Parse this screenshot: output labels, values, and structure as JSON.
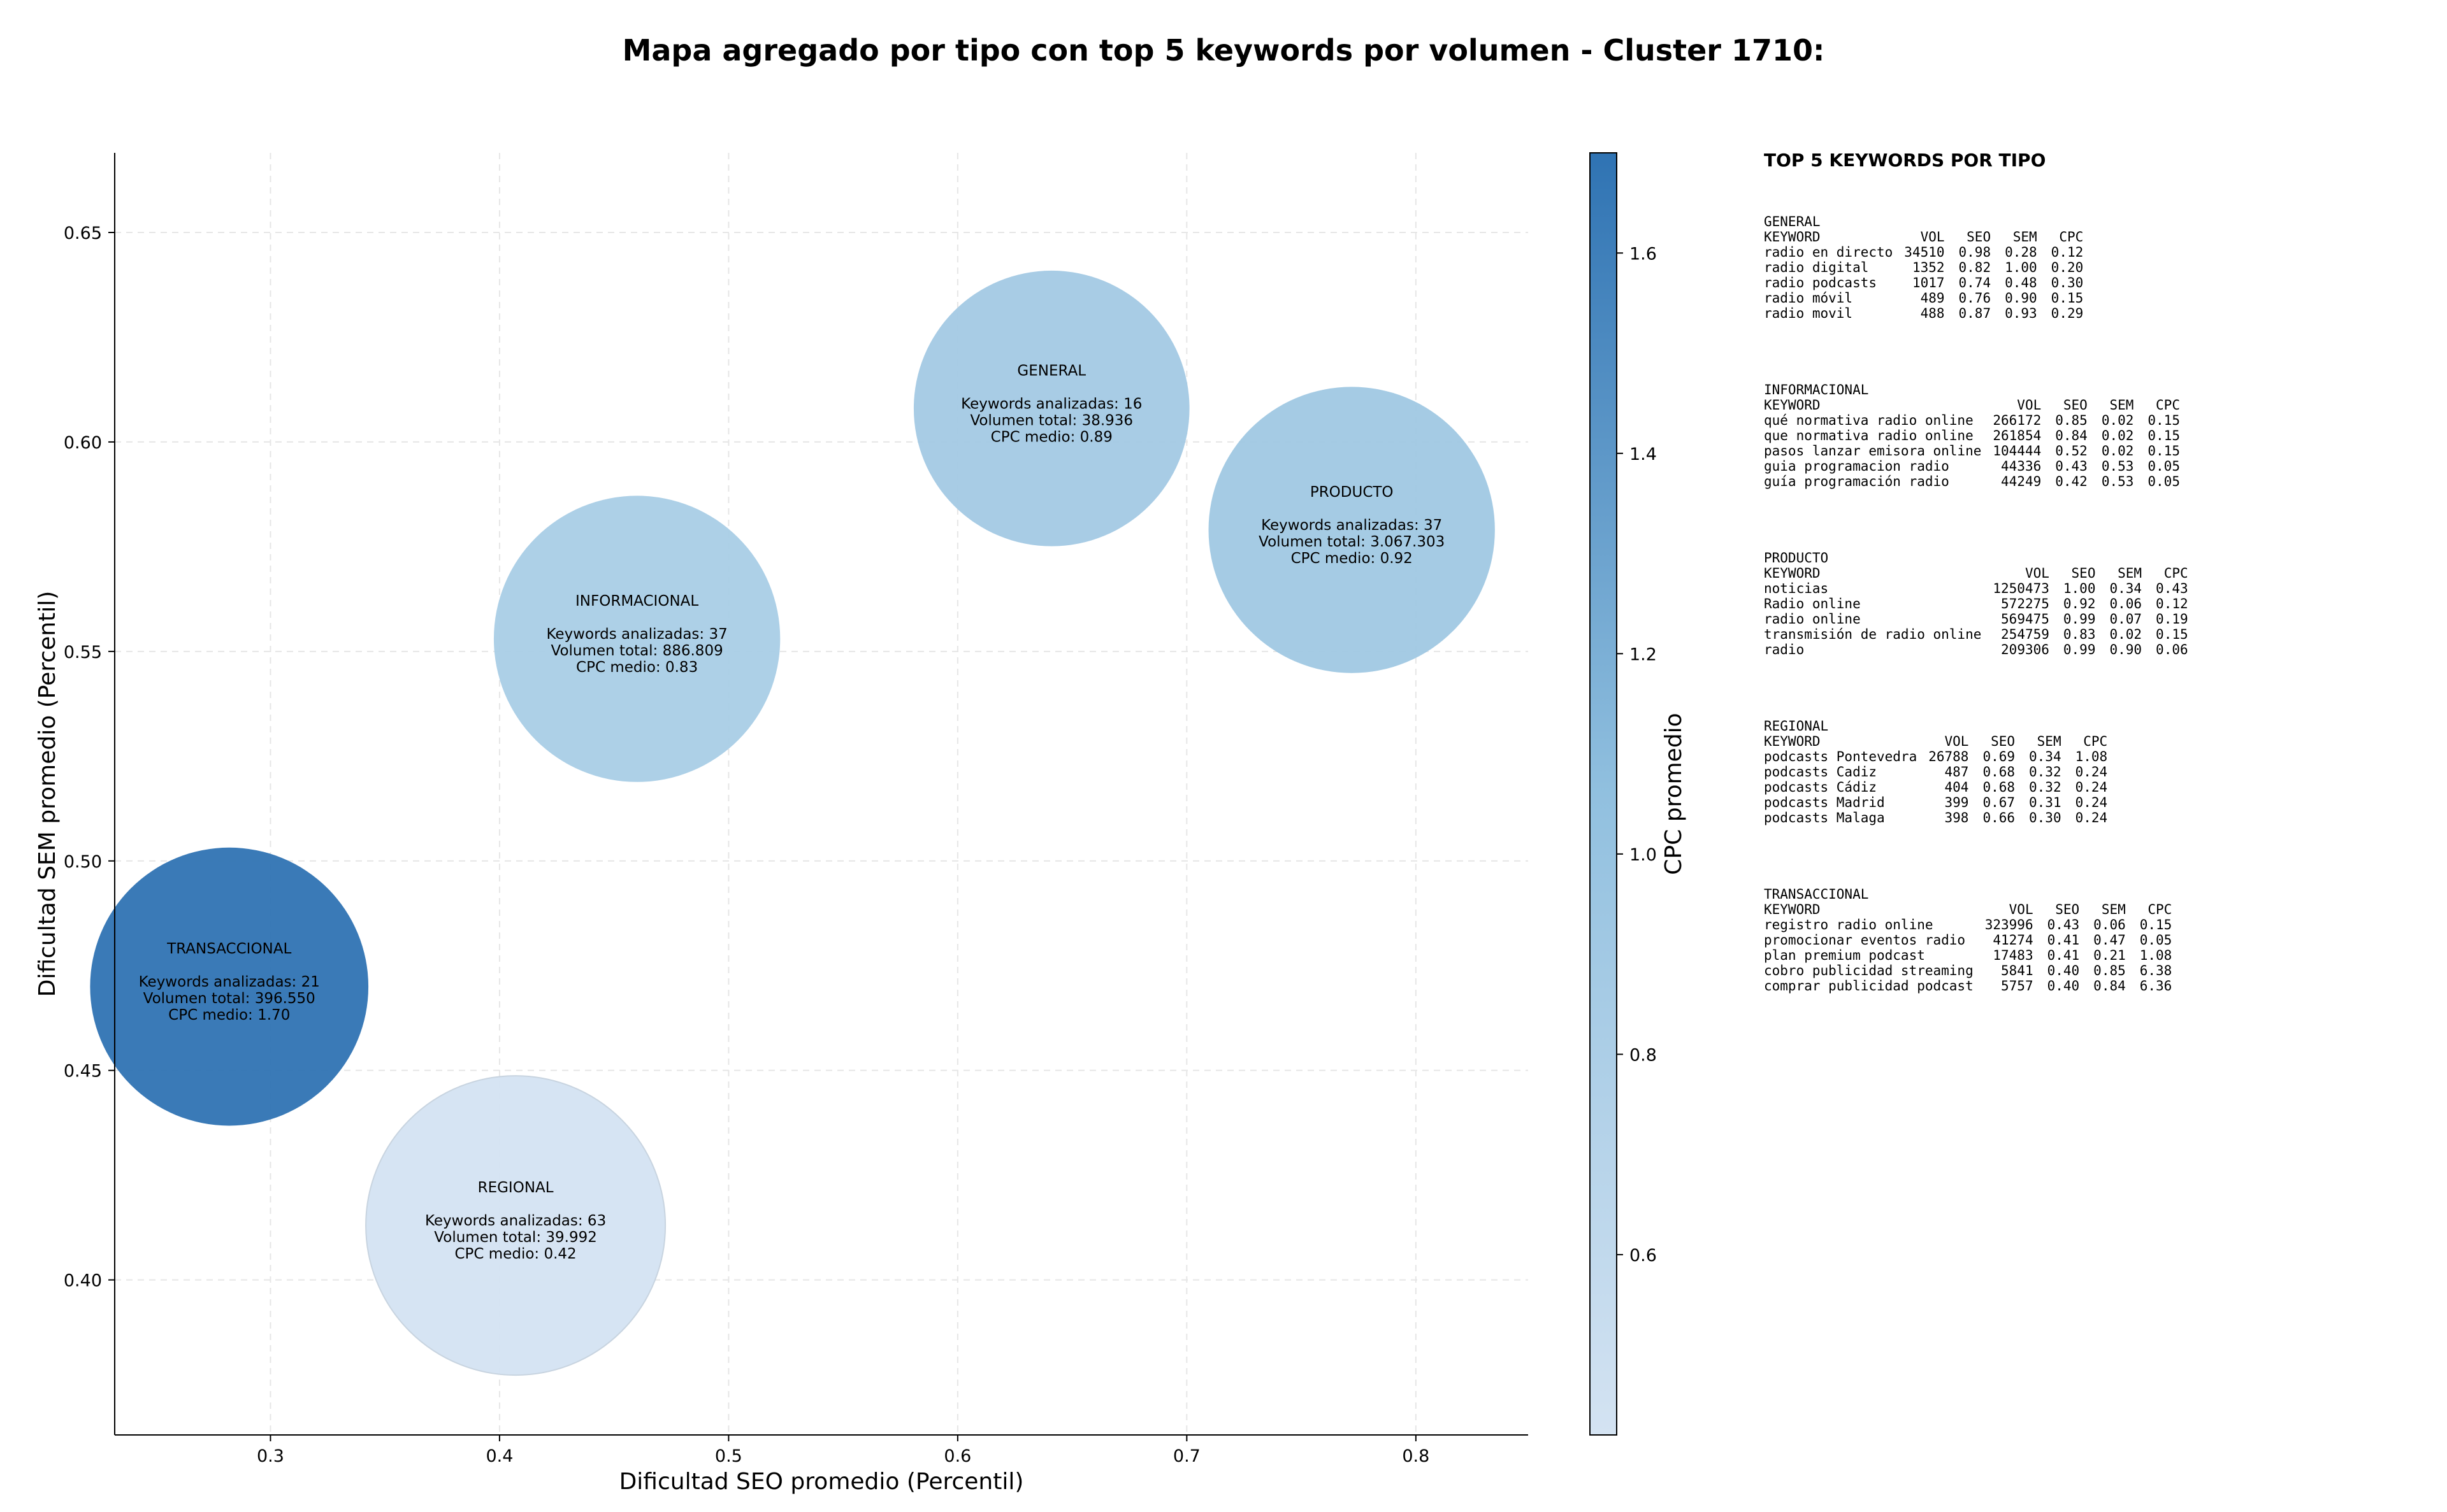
{
  "chart_data": {
    "type": "bubble",
    "title": "Mapa agregado por tipo con top 5 keywords por volumen - Cluster 1710:",
    "xlabel": "Dificultad SEO promedio (Percentil)",
    "ylabel": "Dificultad SEM promedio (Percentil)",
    "xlim": [
      0.232,
      0.849
    ],
    "ylim": [
      0.363,
      0.669
    ],
    "xticks": [
      "0.3",
      "0.4",
      "0.5",
      "0.6",
      "0.7",
      "0.8"
    ],
    "yticks": [
      "0.40",
      "0.45",
      "0.50",
      "0.55",
      "0.60",
      "0.65"
    ],
    "grid": true,
    "colorbar": {
      "label": "CPC promedio",
      "min": 0.42,
      "max": 1.7,
      "ticks": [
        "0.6",
        "0.8",
        "1.0",
        "1.2",
        "1.4",
        "1.6"
      ],
      "colors": [
        "#d4e3f2",
        "#2f73b3"
      ]
    },
    "points": [
      {
        "type": "GENERAL",
        "x": 0.641,
        "y": 0.608,
        "keywords_label": "Keywords analizadas: 16",
        "volume_label": "Volumen total: 38.936",
        "cpc_label": "CPC medio: 0.89",
        "cpc": 0.89,
        "keywords": 16
      },
      {
        "type": "PRODUCTO",
        "x": 0.772,
        "y": 0.579,
        "keywords_label": "Keywords analizadas: 37",
        "volume_label": "Volumen total: 3.067.303",
        "cpc_label": "CPC medio: 0.92",
        "cpc": 0.92,
        "keywords": 37
      },
      {
        "type": "INFORMACIONAL",
        "x": 0.46,
        "y": 0.553,
        "keywords_label": "Keywords analizadas: 37",
        "volume_label": "Volumen total: 886.809",
        "cpc_label": "CPC medio: 0.83",
        "cpc": 0.83,
        "keywords": 37
      },
      {
        "type": "TRANSACCIONAL",
        "x": 0.282,
        "y": 0.47,
        "keywords_label": "Keywords analizadas: 21",
        "volume_label": "Volumen total: 396.550",
        "cpc_label": "CPC medio: 1.70",
        "cpc": 1.7,
        "keywords": 21
      },
      {
        "type": "REGIONAL",
        "x": 0.407,
        "y": 0.413,
        "keywords_label": "Keywords analizadas: 63",
        "volume_label": "Volumen total: 39.992",
        "cpc_label": "CPC medio: 0.42",
        "cpc": 0.42,
        "keywords": 63
      }
    ]
  },
  "panel": {
    "title": "TOP 5 KEYWORDS POR TIPO",
    "headers": [
      "KEYWORD",
      "VOL",
      "SEO",
      "SEM",
      "CPC"
    ],
    "blocks": [
      {
        "name": "GENERAL",
        "rows": [
          [
            "radio en directo",
            "34510",
            "0.98",
            "0.28",
            "0.12"
          ],
          [
            "radio digital",
            "1352",
            "0.82",
            "1.00",
            "0.20"
          ],
          [
            "radio podcasts",
            "1017",
            "0.74",
            "0.48",
            "0.30"
          ],
          [
            "radio móvil",
            "489",
            "0.76",
            "0.90",
            "0.15"
          ],
          [
            "radio movil",
            "488",
            "0.87",
            "0.93",
            "0.29"
          ]
        ]
      },
      {
        "name": "INFORMACIONAL",
        "rows": [
          [
            "qué normativa radio online",
            "266172",
            "0.85",
            "0.02",
            "0.15"
          ],
          [
            "que normativa radio online",
            "261854",
            "0.84",
            "0.02",
            "0.15"
          ],
          [
            "pasos lanzar emisora online",
            "104444",
            "0.52",
            "0.02",
            "0.15"
          ],
          [
            "guia programacion radio",
            "44336",
            "0.43",
            "0.53",
            "0.05"
          ],
          [
            "guía programación radio",
            "44249",
            "0.42",
            "0.53",
            "0.05"
          ]
        ]
      },
      {
        "name": "PRODUCTO",
        "rows": [
          [
            "noticias",
            "1250473",
            "1.00",
            "0.34",
            "0.43"
          ],
          [
            "Radio online",
            "572275",
            "0.92",
            "0.06",
            "0.12"
          ],
          [
            "radio online",
            "569475",
            "0.99",
            "0.07",
            "0.19"
          ],
          [
            "transmisión de radio online",
            "254759",
            "0.83",
            "0.02",
            "0.15"
          ],
          [
            "radio",
            "209306",
            "0.99",
            "0.90",
            "0.06"
          ]
        ]
      },
      {
        "name": "REGIONAL",
        "rows": [
          [
            "podcasts Pontevedra",
            "26788",
            "0.69",
            "0.34",
            "1.08"
          ],
          [
            "podcasts Cadiz",
            "487",
            "0.68",
            "0.32",
            "0.24"
          ],
          [
            "podcasts Cádiz",
            "404",
            "0.68",
            "0.32",
            "0.24"
          ],
          [
            "podcasts Madrid",
            "399",
            "0.67",
            "0.31",
            "0.24"
          ],
          [
            "podcasts Malaga",
            "398",
            "0.66",
            "0.30",
            "0.24"
          ]
        ]
      },
      {
        "name": "TRANSACCIONAL",
        "rows": [
          [
            "registro radio online",
            "323996",
            "0.43",
            "0.06",
            "0.15"
          ],
          [
            "promocionar eventos radio",
            "41274",
            "0.41",
            "0.47",
            "0.05"
          ],
          [
            "plan premium podcast",
            "17483",
            "0.41",
            "0.21",
            "1.08"
          ],
          [
            "cobro publicidad streaming",
            "5841",
            "0.40",
            "0.85",
            "6.38"
          ],
          [
            "comprar publicidad podcast",
            "5757",
            "0.40",
            "0.84",
            "6.36"
          ]
        ]
      }
    ]
  }
}
